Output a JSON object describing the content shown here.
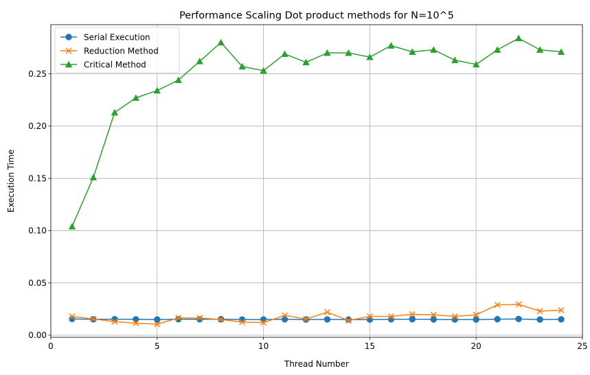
{
  "chart_data": {
    "type": "line",
    "title": "Performance Scaling Dot product methods for N=10^5",
    "xlabel": "Thread Number",
    "ylabel": "Execution Time",
    "xlim": [
      0,
      25
    ],
    "ylim": [
      -0.002,
      0.297
    ],
    "x_ticks": [
      0,
      5,
      10,
      15,
      20,
      25
    ],
    "y_ticks": [
      0.0,
      0.05,
      0.1,
      0.15,
      0.2,
      0.25
    ],
    "x_tick_labels": [
      "0",
      "5",
      "10",
      "15",
      "20",
      "25"
    ],
    "y_tick_labels": [
      "0.00",
      "0.05",
      "0.10",
      "0.15",
      "0.20",
      "0.25"
    ],
    "grid": true,
    "legend_position": "top-left",
    "x": [
      1,
      2,
      3,
      4,
      5,
      6,
      7,
      8,
      9,
      10,
      11,
      12,
      13,
      14,
      15,
      16,
      17,
      18,
      19,
      20,
      21,
      22,
      23,
      24
    ],
    "series": [
      {
        "name": "Serial Execution",
        "color": "#1f77b4",
        "marker": "circle",
        "values": [
          0.0155,
          0.0152,
          0.0153,
          0.0152,
          0.015,
          0.0153,
          0.0152,
          0.0153,
          0.015,
          0.015,
          0.0153,
          0.015,
          0.0151,
          0.015,
          0.015,
          0.0152,
          0.0153,
          0.0151,
          0.015,
          0.015,
          0.0153,
          0.0155,
          0.015,
          0.0152
        ]
      },
      {
        "name": "Reduction Method",
        "color": "#ff7f0e",
        "marker": "x",
        "values": [
          0.018,
          0.0155,
          0.013,
          0.0115,
          0.0105,
          0.0165,
          0.0165,
          0.015,
          0.0125,
          0.012,
          0.019,
          0.0155,
          0.022,
          0.014,
          0.018,
          0.018,
          0.02,
          0.0195,
          0.018,
          0.0195,
          0.029,
          0.0295,
          0.023,
          0.024
        ]
      },
      {
        "name": "Critical Method",
        "color": "#2ca02c",
        "marker": "triangle",
        "values": [
          0.104,
          0.151,
          0.213,
          0.227,
          0.234,
          0.244,
          0.262,
          0.28,
          0.257,
          0.253,
          0.269,
          0.261,
          0.27,
          0.27,
          0.266,
          0.277,
          0.271,
          0.273,
          0.263,
          0.259,
          0.273,
          0.284,
          0.273,
          0.271
        ]
      }
    ]
  }
}
